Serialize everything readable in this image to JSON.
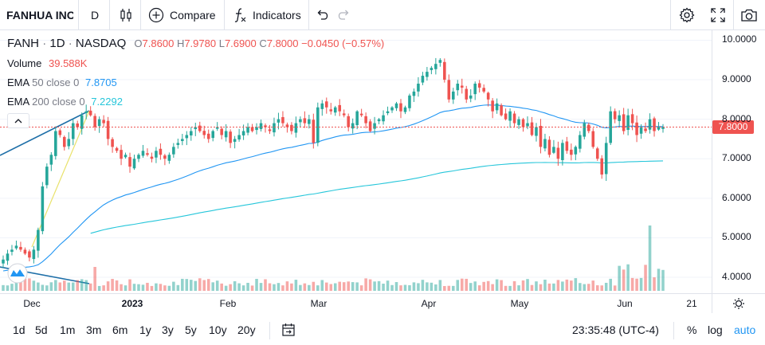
{
  "toolbar": {
    "symbol": "FANHUA INC",
    "interval": "D",
    "compare_label": "Compare",
    "indicators_label": "Indicators"
  },
  "legend": {
    "ticker": "FANH",
    "interval": "1D",
    "exchange": "NASDAQ",
    "open_key": "O",
    "open": "7.8600",
    "high_key": "H",
    "high": "7.9780",
    "low_key": "L",
    "low": "7.6900",
    "close_key": "C",
    "close": "7.8000",
    "change": "−0.0450 (−0.57%)",
    "volume_label": "Volume",
    "volume": "39.588K",
    "ema50_label": "EMA",
    "ema50_params": "50 close 0",
    "ema50_value": "7.8705",
    "ema200_label": "EMA",
    "ema200_params": "200 close 0",
    "ema200_value": "7.2292"
  },
  "price_axis": {
    "labels": [
      "10.0000",
      "9.0000",
      "8.0000",
      "7.0000",
      "6.0000",
      "5.0000",
      "4.0000"
    ],
    "last_price": "7.8000"
  },
  "time_axis": {
    "labels": [
      "Dec",
      "2023",
      "Feb",
      "Mar",
      "Apr",
      "May",
      "Jun",
      "21"
    ]
  },
  "bottom": {
    "ranges": [
      "1d",
      "5d",
      "1m",
      "3m",
      "6m",
      "1y",
      "3y",
      "5y",
      "10y",
      "20y"
    ],
    "clock": "23:35:48 (UTC-4)",
    "percent_label": "%",
    "log_label": "log",
    "auto_label": "auto"
  },
  "colors": {
    "up": "#26a69a",
    "down": "#ef5350",
    "ema50": "#2196f3",
    "ema200": "#26c6da",
    "last_price_bg": "#ef5350"
  },
  "chart_data": {
    "type": "candlestick",
    "y_range": [
      3.9,
      10.15
    ],
    "y_ticks": [
      4,
      5,
      6,
      7,
      8,
      9,
      10
    ],
    "x_labels": [
      "Dec",
      "2023",
      "Feb",
      "Mar",
      "Apr",
      "May",
      "Jun",
      "21"
    ],
    "closes": [
      4.45,
      4.6,
      4.7,
      4.8,
      4.7,
      4.6,
      4.5,
      4.7,
      5.2,
      6.3,
      6.8,
      7.1,
      7.7,
      7.6,
      7.3,
      7.5,
      7.9,
      7.8,
      8.1,
      8.2,
      8.1,
      7.8,
      8.0,
      7.9,
      7.5,
      7.3,
      7.2,
      7.0,
      7.1,
      6.8,
      7.0,
      7.1,
      7.2,
      7.1,
      7.0,
      7.2,
      7.1,
      7.0,
      7.1,
      7.3,
      7.4,
      7.5,
      7.6,
      7.7,
      7.8,
      7.7,
      7.6,
      7.5,
      7.7,
      7.8,
      7.6,
      7.7,
      7.4,
      7.5,
      7.6,
      7.7,
      7.8,
      7.7,
      7.8,
      7.9,
      7.8,
      7.7,
      7.9,
      8.0,
      7.9,
      7.8,
      7.7,
      7.9,
      8.0,
      7.9,
      8.0,
      7.4,
      8.3,
      8.4,
      8.3,
      8.2,
      8.3,
      8.2,
      8.1,
      7.8,
      7.9,
      8.2,
      8.1,
      7.9,
      7.7,
      7.9,
      8.0,
      8.1,
      8.2,
      8.3,
      8.4,
      8.2,
      8.3,
      8.6,
      8.7,
      8.9,
      9.1,
      9.2,
      9.3,
      9.4,
      9.5,
      9.0,
      8.5,
      8.7,
      8.9,
      8.8,
      8.5,
      8.6,
      8.9,
      8.8,
      8.7,
      8.5,
      8.2,
      8.4,
      8.1,
      8.0,
      8.2,
      7.9,
      8.0,
      7.8,
      7.9,
      7.6,
      7.8,
      7.3,
      7.5,
      7.1,
      7.3,
      7.0,
      7.4,
      7.2,
      7.1,
      7.3,
      7.6,
      7.9,
      7.7,
      7.3,
      7.0,
      6.6,
      7.4,
      8.2,
      8.0,
      8.1,
      7.7,
      8.1,
      7.9,
      7.6,
      7.8,
      7.7,
      8.0,
      7.7,
      7.8,
      7.8
    ],
    "volume_label": "39.588K",
    "ema50_last": 7.8705,
    "ema200_last": 7.2292
  }
}
